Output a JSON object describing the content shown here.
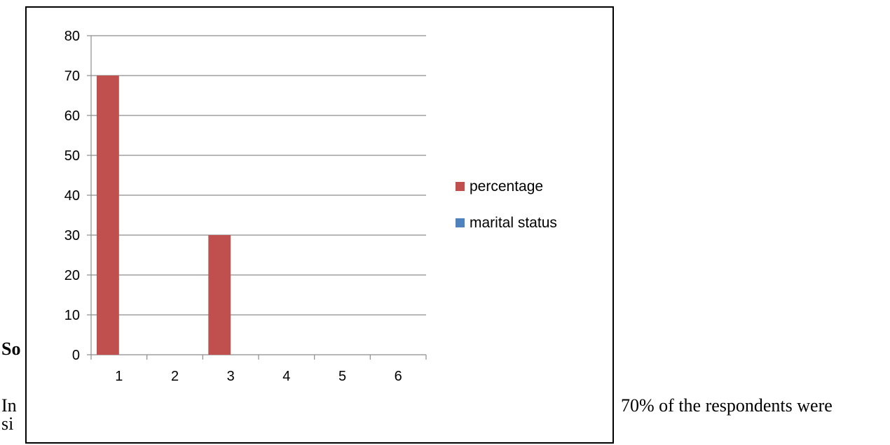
{
  "document": {
    "heading_fragment": "So",
    "line1_left_fragment": "In",
    "line1_right_fragment": "70% of the respondents were",
    "line2_left_fragment": "si",
    "line2_right_fragment": "."
  },
  "chart_data": {
    "type": "bar",
    "title": "",
    "xlabel": "",
    "ylabel": "",
    "categories": [
      "1",
      "2",
      "3",
      "4",
      "5",
      "6"
    ],
    "ylim": [
      0,
      80
    ],
    "yticks": [
      0,
      10,
      20,
      30,
      40,
      50,
      60,
      70,
      80
    ],
    "grid": true,
    "legend_position": "right",
    "series": [
      {
        "name": "percentage",
        "color": "#c0504d",
        "values": [
          70,
          0,
          30,
          0,
          0,
          0
        ]
      },
      {
        "name": "marital status",
        "color": "#4f81bd",
        "values": [
          0,
          0,
          0,
          0,
          0,
          0
        ]
      }
    ]
  }
}
